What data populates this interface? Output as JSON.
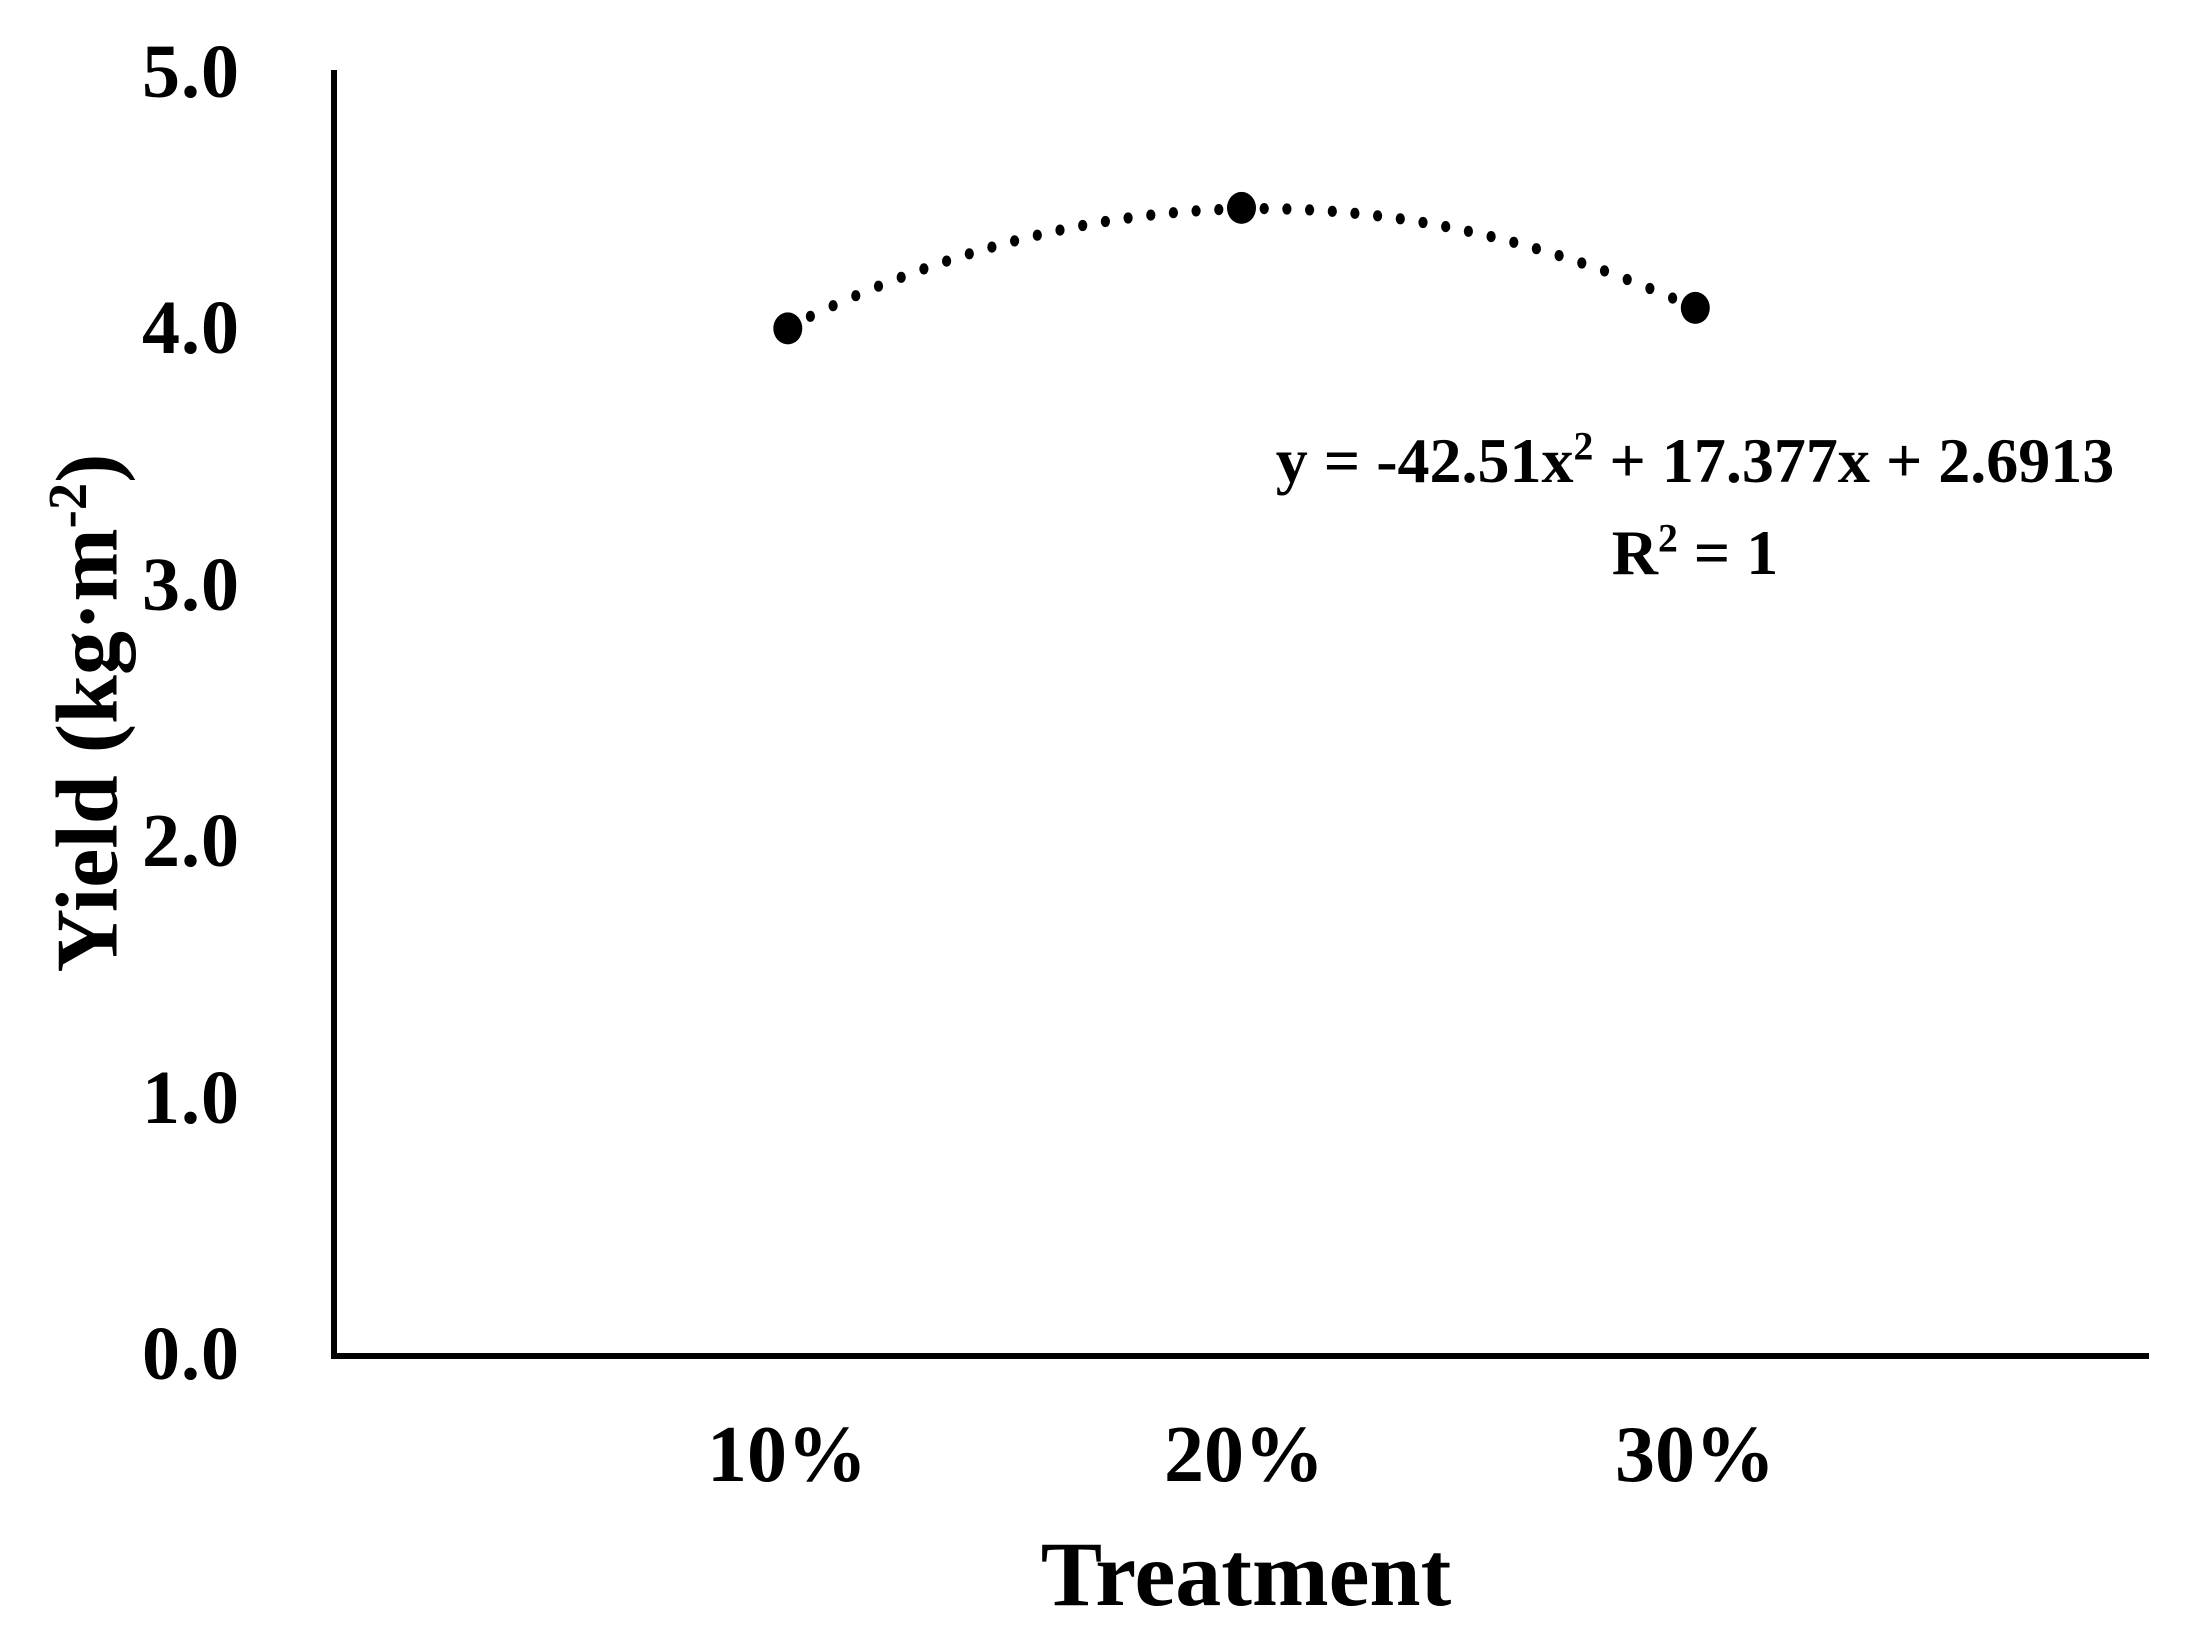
{
  "chart_data": {
    "type": "scatter",
    "title": "",
    "xlabel": "Treatment",
    "ylabel_text": "Yield (kg·m⁻²)",
    "ylabel_parts": {
      "pre": "Yield (kg·m",
      "sup": "-2",
      "post": ")"
    },
    "xlim_fraction": [
      0,
      0.4
    ],
    "ylim": [
      0,
      5
    ],
    "x_ticks": [
      {
        "value": 0.1,
        "label": "10%"
      },
      {
        "value": 0.2,
        "label": "20%"
      },
      {
        "value": 0.3,
        "label": "30%"
      }
    ],
    "y_ticks": [
      {
        "value": 5,
        "label": "5.0"
      },
      {
        "value": 4,
        "label": "4.0"
      },
      {
        "value": 3,
        "label": "3.0"
      },
      {
        "value": 2,
        "label": "2.0"
      },
      {
        "value": 1,
        "label": "1.0"
      },
      {
        "value": 0,
        "label": "0.0"
      }
    ],
    "series": [
      {
        "name": "Yield",
        "marker": "filled-circle",
        "color": "#000000",
        "points": [
          {
            "x": 0.1,
            "x_label": "10%",
            "y": 4.0
          },
          {
            "x": 0.2,
            "x_label": "20%",
            "y": 4.47
          },
          {
            "x": 0.3,
            "x_label": "30%",
            "y": 4.08
          }
        ]
      }
    ],
    "trendline": {
      "style": "dotted",
      "color": "#000000",
      "x_range": [
        0.1,
        0.3
      ],
      "coefficients": {
        "a": -42.51,
        "b": 17.377,
        "c": 2.6913
      },
      "equation_text": "y = -42.51x² + 17.377x + 2.6913",
      "equation_parts": {
        "pre": "y = -42.51x",
        "sup": "2",
        "post": " + 17.377x + 2.6913"
      },
      "r_squared_text": "R² = 1",
      "r_squared_parts": {
        "pre": "R",
        "sup": "2",
        "post": " = 1"
      }
    },
    "grid": false,
    "legend": false,
    "background": "#ffffff",
    "axis_color": "#000000",
    "text_color": "#000000"
  }
}
